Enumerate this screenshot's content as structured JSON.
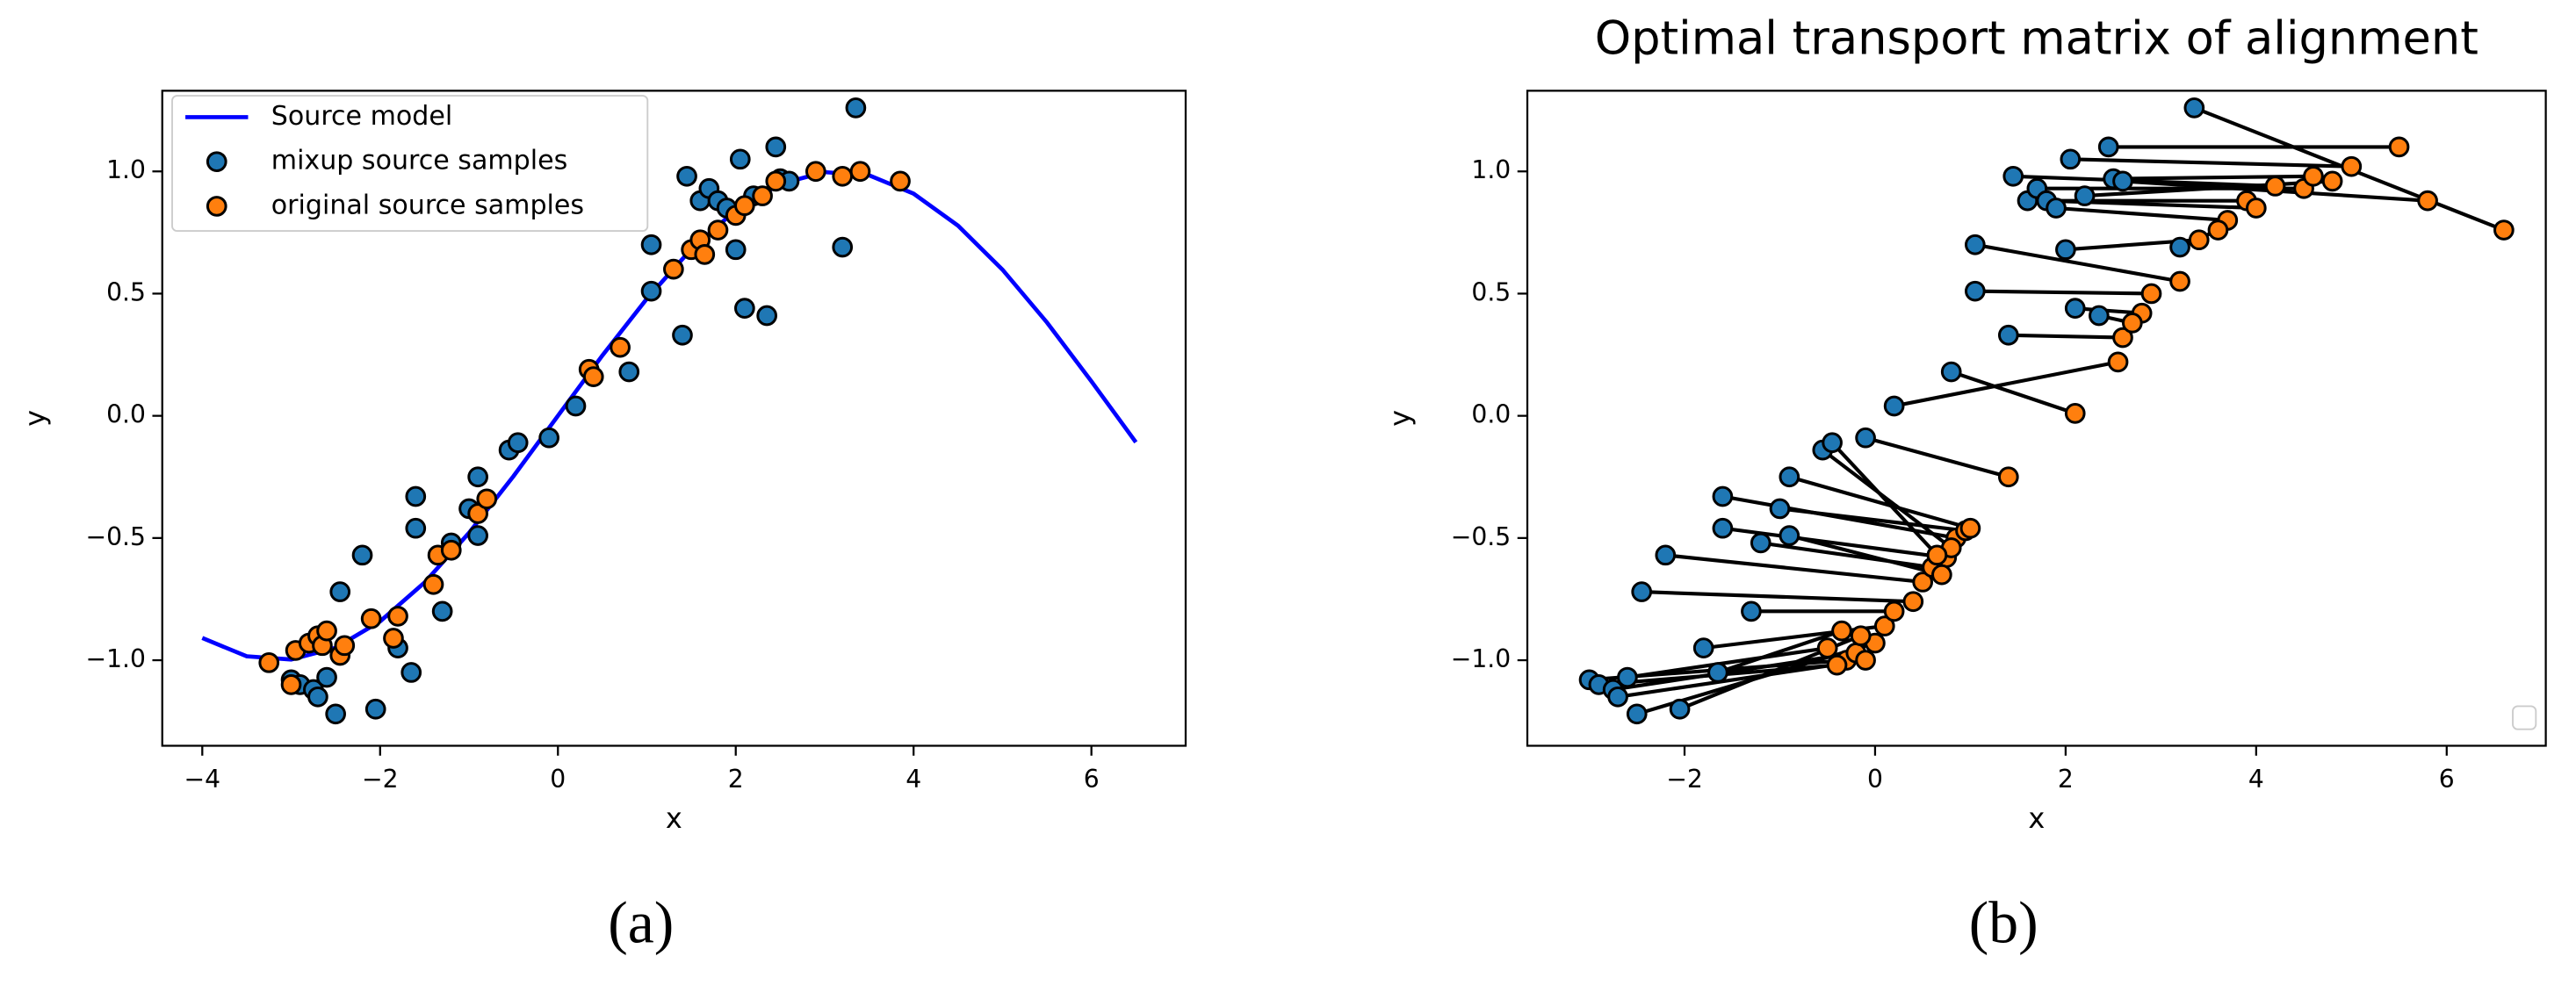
{
  "chart_data": [
    {
      "type": "scatter",
      "caption": "(a)",
      "xlabel": "x",
      "ylabel": "y",
      "legend": "upper left",
      "xlim": [
        -4.45,
        7.06
      ],
      "ylim": [
        -1.35,
        1.33
      ],
      "xticks": [
        {
          "value": -4,
          "label": "−4"
        },
        {
          "value": -2,
          "label": "−2"
        },
        0,
        2,
        4,
        6
      ],
      "yticks": [
        {
          "value": -1,
          "label": "−1.0"
        },
        {
          "value": -0.5,
          "label": "−0.5"
        },
        {
          "value": 0,
          "label": "0.0"
        },
        {
          "value": 0.5,
          "label": "0.5"
        },
        {
          "value": 1,
          "label": "1.0"
        }
      ],
      "series": [
        {
          "name": "Source model",
          "kind": "line",
          "color": "#0000ff",
          "x": [
            -4,
            -3.5,
            -3,
            -2.5,
            -2,
            -1.5,
            -1,
            -0.5,
            0,
            0.5,
            1,
            1.5,
            2,
            2.5,
            3,
            3.5,
            4,
            4.5,
            5,
            5.5,
            6,
            6.5
          ],
          "values": [
            -0.909,
            -0.984,
            -0.997,
            -0.949,
            -0.841,
            -0.682,
            -0.479,
            -0.247,
            0,
            0.247,
            0.479,
            0.682,
            0.841,
            0.949,
            0.997,
            0.984,
            0.909,
            0.778,
            0.598,
            0.382,
            0.141,
            -0.108
          ]
        },
        {
          "name": "mixup source samples",
          "kind": "points",
          "color": "#1f77b4",
          "x": [
            -3.0,
            -2.9,
            -2.75,
            -2.7,
            -2.6,
            -2.5,
            -2.45,
            -2.2,
            -2.05,
            -1.8,
            -1.65,
            -1.6,
            -1.6,
            -1.3,
            -1.2,
            -1.0,
            -0.9,
            -0.9,
            -0.55,
            -0.45,
            -0.1,
            0.2,
            0.8,
            1.05,
            1.05,
            1.4,
            1.45,
            1.6,
            1.7,
            1.8,
            1.9,
            2.0,
            2.05,
            2.1,
            2.2,
            2.35,
            2.45,
            2.5,
            3.2,
            3.35,
            2.6
          ],
          "values": [
            -1.08,
            -1.1,
            -1.12,
            -1.15,
            -1.07,
            -1.22,
            -0.72,
            -0.57,
            -1.2,
            -0.95,
            -1.05,
            -0.33,
            -0.46,
            -0.8,
            -0.52,
            -0.38,
            -0.25,
            -0.49,
            -0.14,
            -0.11,
            -0.09,
            0.04,
            0.18,
            0.7,
            0.51,
            0.33,
            0.98,
            0.88,
            0.93,
            0.88,
            0.85,
            0.68,
            1.05,
            0.44,
            0.9,
            0.41,
            1.1,
            0.97,
            0.69,
            1.26,
            0.96
          ]
        },
        {
          "name": "original source samples",
          "kind": "points",
          "color": "#ff7f0e",
          "x": [
            -3.25,
            -3.0,
            -2.95,
            -2.8,
            -2.7,
            -2.65,
            -2.6,
            -2.45,
            -2.4,
            -2.1,
            -1.85,
            -1.8,
            -1.4,
            -1.35,
            -1.2,
            -0.9,
            -0.8,
            0.35,
            0.4,
            0.7,
            1.3,
            1.5,
            1.6,
            1.65,
            1.8,
            2.0,
            2.1,
            2.3,
            2.45,
            2.9,
            3.2,
            3.4,
            3.85
          ],
          "values": [
            -1.01,
            -1.1,
            -0.96,
            -0.93,
            -0.9,
            -0.94,
            -0.88,
            -0.98,
            -0.94,
            -0.83,
            -0.91,
            -0.82,
            -0.69,
            -0.57,
            -0.55,
            -0.4,
            -0.34,
            0.19,
            0.16,
            0.28,
            0.6,
            0.68,
            0.72,
            0.66,
            0.76,
            0.82,
            0.86,
            0.9,
            0.96,
            1.0,
            0.98,
            1.0,
            0.96
          ]
        }
      ]
    },
    {
      "type": "scatter",
      "title": "Optimal transport matrix of alignment",
      "caption": "(b)",
      "xlabel": "x",
      "ylabel": "y",
      "legend": "lower right",
      "transport_lines": true,
      "xlim": [
        -3.65,
        7.04
      ],
      "ylim": [
        -1.35,
        1.33
      ],
      "xticks": [
        {
          "value": -2,
          "label": "−2"
        },
        0,
        2,
        4,
        6
      ],
      "yticks": [
        {
          "value": -1,
          "label": "−1.0"
        },
        {
          "value": -0.5,
          "label": "−0.5"
        },
        {
          "value": 0,
          "label": "0.0"
        },
        {
          "value": 0.5,
          "label": "0.5"
        },
        {
          "value": 1,
          "label": "1.0"
        }
      ],
      "series": [
        {
          "kind": "points",
          "color": "#1f77b4",
          "x": [
            -3.0,
            -2.9,
            -2.75,
            -2.7,
            -2.6,
            -2.5,
            -2.45,
            -2.2,
            -2.05,
            -1.8,
            -1.65,
            -1.6,
            -1.6,
            -1.3,
            -1.2,
            -1.0,
            -0.9,
            -0.9,
            -0.55,
            -0.45,
            -0.1,
            0.2,
            0.8,
            1.05,
            1.05,
            1.4,
            1.45,
            1.6,
            1.7,
            1.8,
            1.9,
            2.0,
            2.05,
            2.1,
            2.2,
            2.35,
            2.45,
            2.5,
            3.2,
            3.35,
            2.6
          ],
          "values": [
            -1.08,
            -1.1,
            -1.12,
            -1.15,
            -1.07,
            -1.22,
            -0.72,
            -0.57,
            -1.2,
            -0.95,
            -1.05,
            -0.33,
            -0.46,
            -0.8,
            -0.52,
            -0.38,
            -0.25,
            -0.49,
            -0.14,
            -0.11,
            -0.09,
            0.04,
            0.18,
            0.7,
            0.51,
            0.33,
            0.98,
            0.88,
            0.93,
            0.88,
            0.85,
            0.68,
            1.05,
            0.44,
            0.9,
            0.41,
            1.1,
            0.97,
            0.69,
            1.26,
            0.96
          ]
        },
        {
          "kind": "points",
          "color": "#ff7f0e",
          "x": [
            -0.3,
            -0.4,
            -0.2,
            -0.1,
            -0.5,
            0.0,
            0.4,
            0.5,
            -0.15,
            0.1,
            -0.35,
            0.85,
            0.75,
            0.2,
            0.6,
            0.95,
            1.0,
            0.7,
            0.8,
            0.65,
            1.4,
            2.55,
            2.1,
            3.2,
            2.9,
            2.6,
            4.2,
            3.9,
            4.5,
            4.0,
            3.7,
            3.4,
            5.0,
            2.8,
            4.8,
            2.7,
            5.5,
            4.6,
            3.6,
            6.6,
            5.8
          ],
          "values": [
            -1.0,
            -1.02,
            -0.97,
            -1.0,
            -0.95,
            -0.93,
            -0.76,
            -0.68,
            -0.9,
            -0.86,
            -0.88,
            -0.5,
            -0.58,
            -0.8,
            -0.62,
            -0.47,
            -0.46,
            -0.65,
            -0.54,
            -0.57,
            -0.25,
            0.22,
            0.01,
            0.55,
            0.5,
            0.32,
            0.94,
            0.88,
            0.93,
            0.85,
            0.8,
            0.72,
            1.02,
            0.42,
            0.96,
            0.38,
            1.1,
            0.98,
            0.76,
            0.76,
            0.88
          ]
        }
      ]
    }
  ]
}
